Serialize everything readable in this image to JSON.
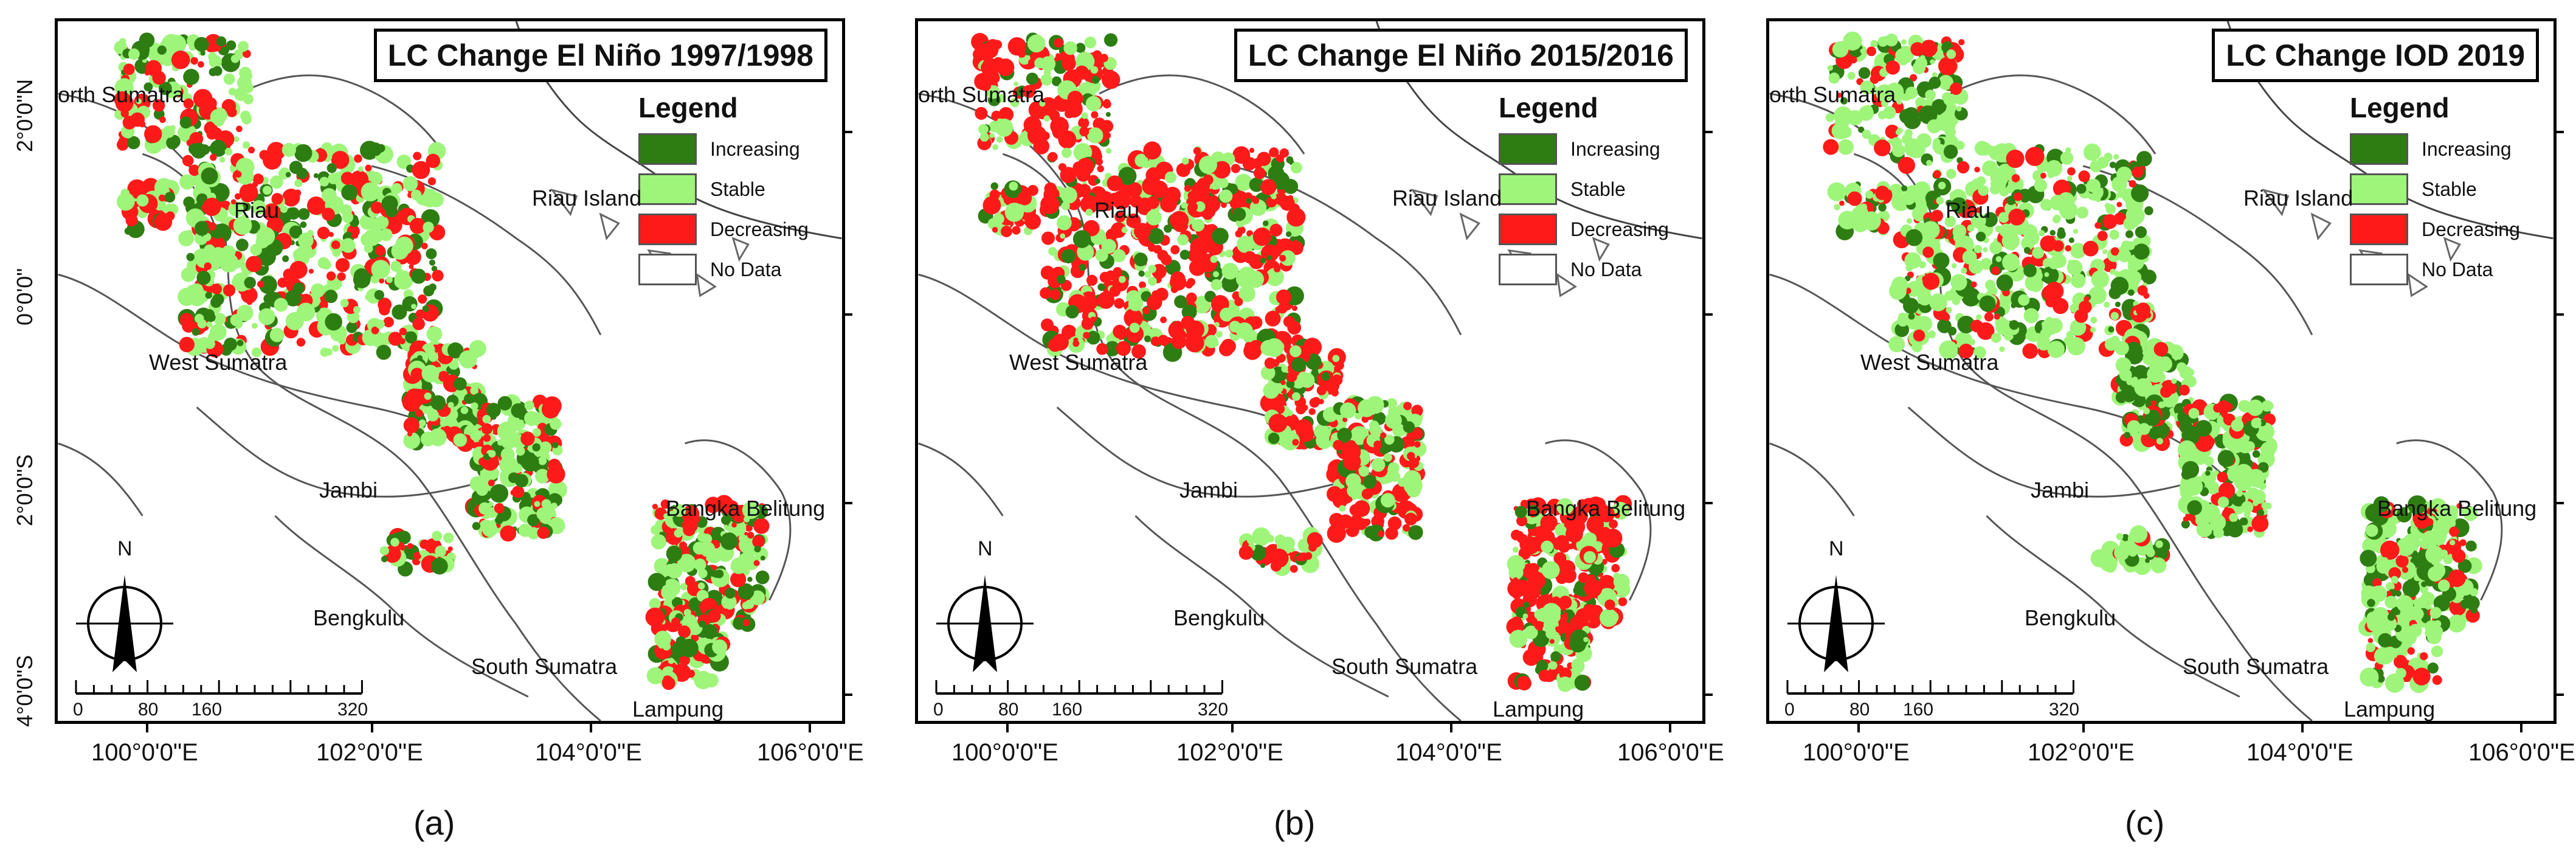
{
  "maps": [
    {
      "id": "a",
      "title": "LC Change El Niño 1997/1998",
      "panel_label": "(a)",
      "lat_ticks": [
        "2°0'0\"N",
        "0°0'0\"",
        "2°0'0\"S",
        "4°0'0\"S"
      ],
      "lon_ticks": [
        "100°0'0\"E",
        "102°0'0\"E",
        "104°0'0\"E",
        "106°0'0\"E"
      ]
    },
    {
      "id": "b",
      "title": "LC Change El Niño 2015/2016",
      "panel_label": "(b)",
      "lat_ticks": [],
      "lon_ticks": [
        "100°0'0\"E",
        "102°0'0\"E",
        "104°0'0\"E",
        "106°0'0\"E"
      ]
    },
    {
      "id": "c",
      "title": "LC Change IOD 2019",
      "panel_label": "(c)",
      "lat_ticks": [],
      "lon_ticks": [
        "100°0'0\"E",
        "102°0'0\"E",
        "104°0'0\"E",
        "106°0'0\"E"
      ]
    }
  ],
  "legend": {
    "title": "Legend",
    "items": [
      {
        "label": "Increasing",
        "color": "#2e7d12"
      },
      {
        "label": "Stable",
        "color": "#9ef57a"
      },
      {
        "label": "Decreasing",
        "color": "#ff1a1a"
      },
      {
        "label": "No Data",
        "color": "#ffffff"
      }
    ]
  },
  "places": {
    "north_sumatra": "orth Sumatra",
    "riau": "Riau",
    "riau_island": "Riau Island",
    "west_sumatra": "West Sumatra",
    "jambi": "Jambi",
    "bangka_belitung": "Bangka Belitung",
    "bengkulu": "Bengkulu",
    "south_sumatra": "South Sumatra",
    "lampung": "Lampung"
  },
  "north_arrow": {
    "letter": "N",
    "icon": "north-arrow-icon"
  },
  "scalebar": {
    "labels": [
      "0",
      "80",
      "160",
      "320 Km"
    ]
  }
}
